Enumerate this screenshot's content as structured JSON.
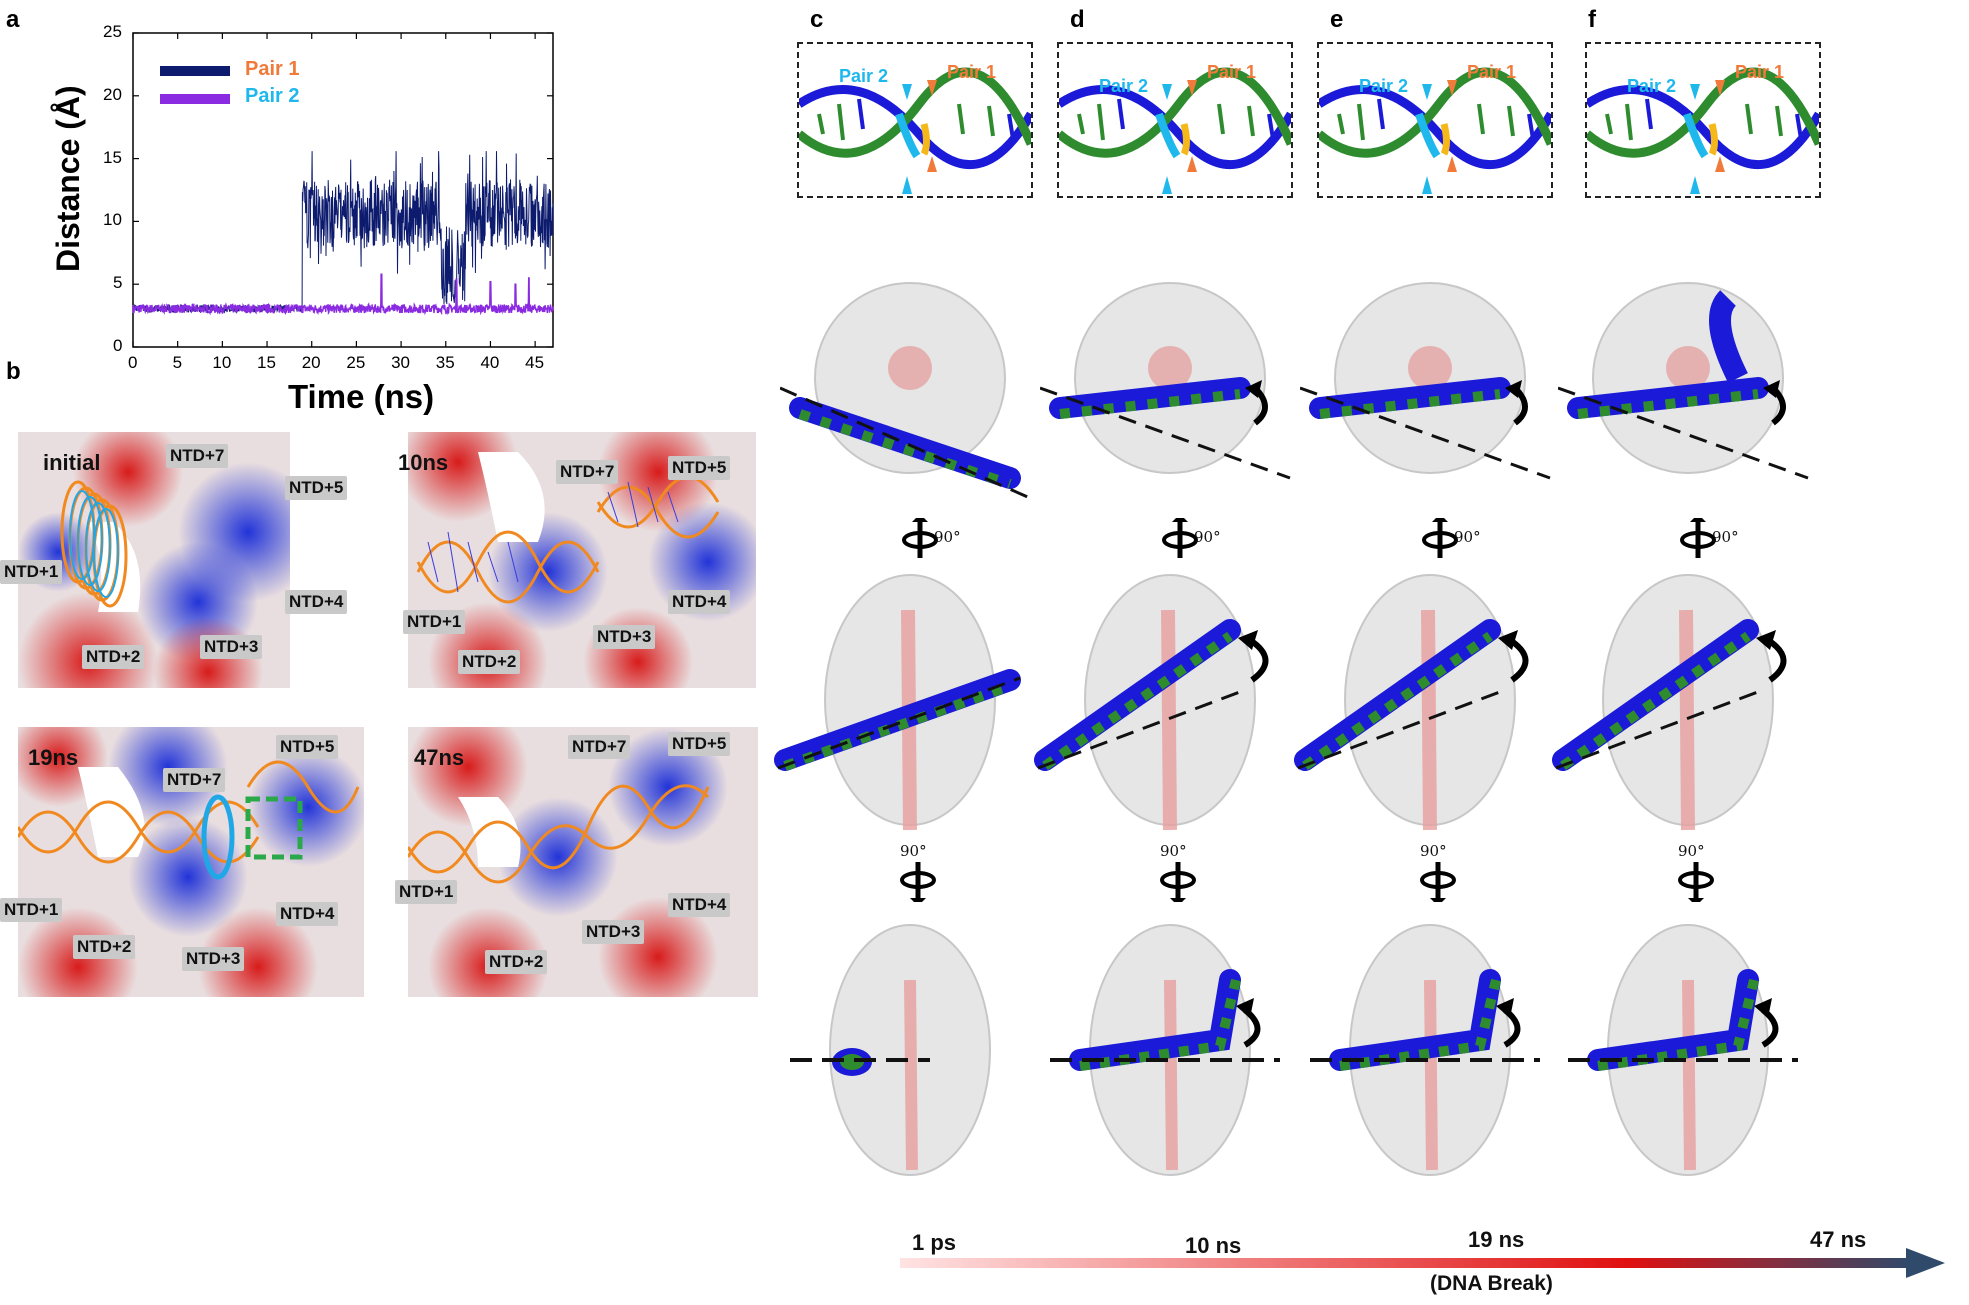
{
  "panels": {
    "a": "a",
    "b": "b",
    "c": "c",
    "d": "d",
    "e": "e",
    "f": "f"
  },
  "chart_data": {
    "type": "line",
    "xlabel": "Time (ns)",
    "ylabel": "Distance (Å)",
    "xlim": [
      0,
      47
    ],
    "ylim": [
      0,
      25
    ],
    "xticks": [
      0,
      5,
      10,
      15,
      20,
      25,
      30,
      35,
      40,
      45
    ],
    "yticks": [
      0,
      5,
      10,
      15,
      20,
      25
    ],
    "legend_position": "top-left",
    "series": [
      {
        "name": "Pair 1",
        "color": "#0d1b6e",
        "description_points": {
          "x": [
            0,
            18.9,
            19.0,
            25,
            30,
            35,
            36,
            40,
            47
          ],
          "y": [
            3.0,
            3.0,
            10.5,
            10.5,
            11,
            8,
            4,
            10.5,
            11
          ]
        }
      },
      {
        "name": "Pair 2",
        "color": "#8a2be2",
        "description_points": {
          "x": [
            0,
            10,
            20,
            30,
            40,
            47
          ],
          "y": [
            3.0,
            3.0,
            3.1,
            3.0,
            3.0,
            3.0
          ]
        }
      }
    ],
    "legend_label_colors": {
      "Pair 1": "#f07a3a",
      "Pair 2": "#1fb8ec"
    }
  },
  "panel_b": {
    "frames": [
      {
        "time": "initial",
        "labels": [
          "NTD+7",
          "NTD+5",
          "NTD+1",
          "NTD+4",
          "NTD+2",
          "NTD+3"
        ]
      },
      {
        "time": "10ns",
        "labels": [
          "NTD+7",
          "NTD+5",
          "NTD+4",
          "NTD+1",
          "NTD+3",
          "NTD+2"
        ]
      },
      {
        "time": "19ns",
        "labels": [
          "NTD+5",
          "NTD+7",
          "NTD+1",
          "NTD+4",
          "NTD+2",
          "NTD+3"
        ]
      },
      {
        "time": "47ns",
        "labels": [
          "NTD+7",
          "NTD+5",
          "NTD+1",
          "NTD+4",
          "NTD+3",
          "NTD+2"
        ]
      }
    ]
  },
  "dna_insets": {
    "pair1_label": "Pair 1",
    "pair2_label": "Pair 2"
  },
  "rotation": {
    "deg_label": "90°"
  },
  "timeline": {
    "labels": [
      "1 ps",
      "10 ns",
      "19 ns",
      "47 ns"
    ],
    "note": "(DNA Break)",
    "start_color": "#ffe3e3",
    "mid_color": "#e01010",
    "end_color": "#2f4a6b"
  },
  "colors": {
    "pair1": "#f07a3a",
    "pair2": "#1fb8ec",
    "dna_green": "#2e8b2e",
    "dna_blue": "#1a1ad8"
  }
}
